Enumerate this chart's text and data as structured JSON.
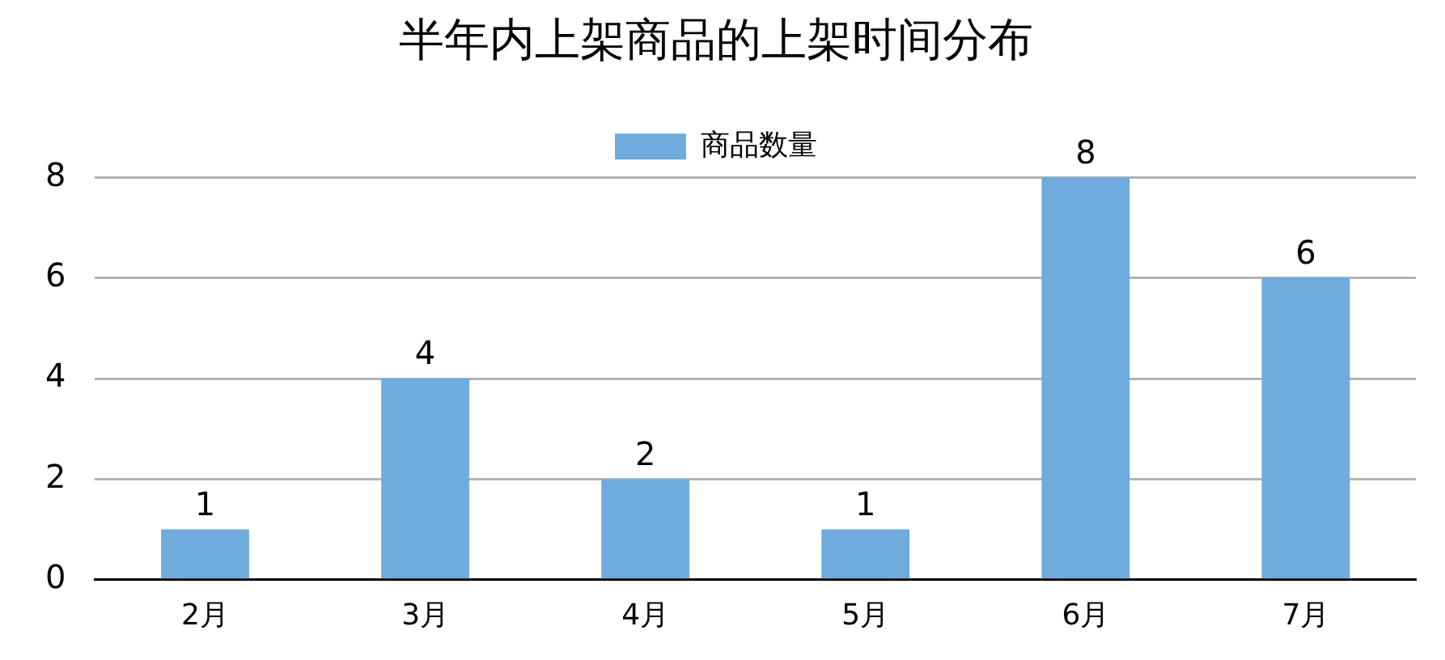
{
  "chart_data": {
    "type": "bar",
    "title": "半年内上架商品的上架时间分布",
    "categories": [
      "2月",
      "3月",
      "4月",
      "5月",
      "6月",
      "7月"
    ],
    "series": [
      {
        "name": "商品数量",
        "color": "#6fabdc",
        "values": [
          1,
          4,
          2,
          1,
          8,
          6
        ]
      }
    ],
    "ylim": [
      0,
      8
    ],
    "yticks": [
      0,
      2,
      4,
      6,
      8
    ],
    "grid": "y",
    "legend": "top",
    "data_labels": true
  }
}
